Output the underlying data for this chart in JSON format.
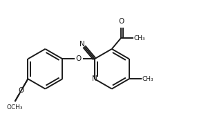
{
  "background_color": "#ffffff",
  "line_color": "#1a1a1a",
  "line_width": 1.4,
  "figsize": [
    2.85,
    1.94
  ],
  "dpi": 100,
  "xlim": [
    0.0,
    10.0
  ],
  "ylim": [
    0.0,
    7.0
  ]
}
